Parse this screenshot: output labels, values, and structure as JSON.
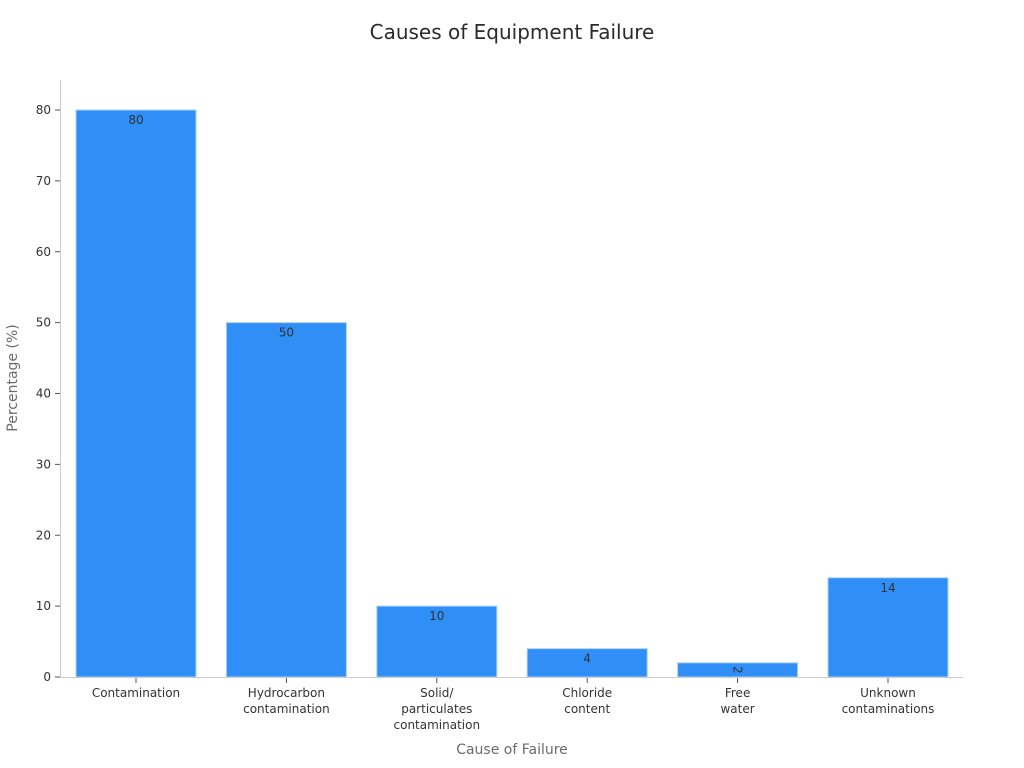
{
  "chart_data": {
    "type": "bar",
    "title": "Causes of Equipment Failure",
    "xlabel": "Cause of Failure",
    "ylabel": "Percentage (%)",
    "categories": [
      "Contamination",
      "Hydrocarbon contamination",
      "Solid/ particulates contamination",
      "Chloride content",
      "Free water",
      "Unknown contaminations"
    ],
    "category_label_lines": [
      [
        "Contamination"
      ],
      [
        "Hydrocarbon",
        "contamination"
      ],
      [
        "Solid/",
        "particulates",
        "contamination"
      ],
      [
        "Chloride",
        "content"
      ],
      [
        "Free",
        "water"
      ],
      [
        "Unknown",
        "contaminations"
      ]
    ],
    "values": [
      80,
      50,
      10,
      4,
      2,
      14
    ],
    "data_labels": [
      "80",
      "50",
      "10",
      "4",
      "2",
      "14"
    ],
    "yticks": [
      0,
      10,
      20,
      30,
      40,
      50,
      60,
      70,
      80
    ],
    "ylim": [
      0,
      84
    ],
    "grid": false,
    "legend": null,
    "colors": {
      "bar": "#2f8ff7",
      "bar_edge": "#a9d0f5",
      "axis": "#cccccc",
      "label": "#333333"
    }
  }
}
